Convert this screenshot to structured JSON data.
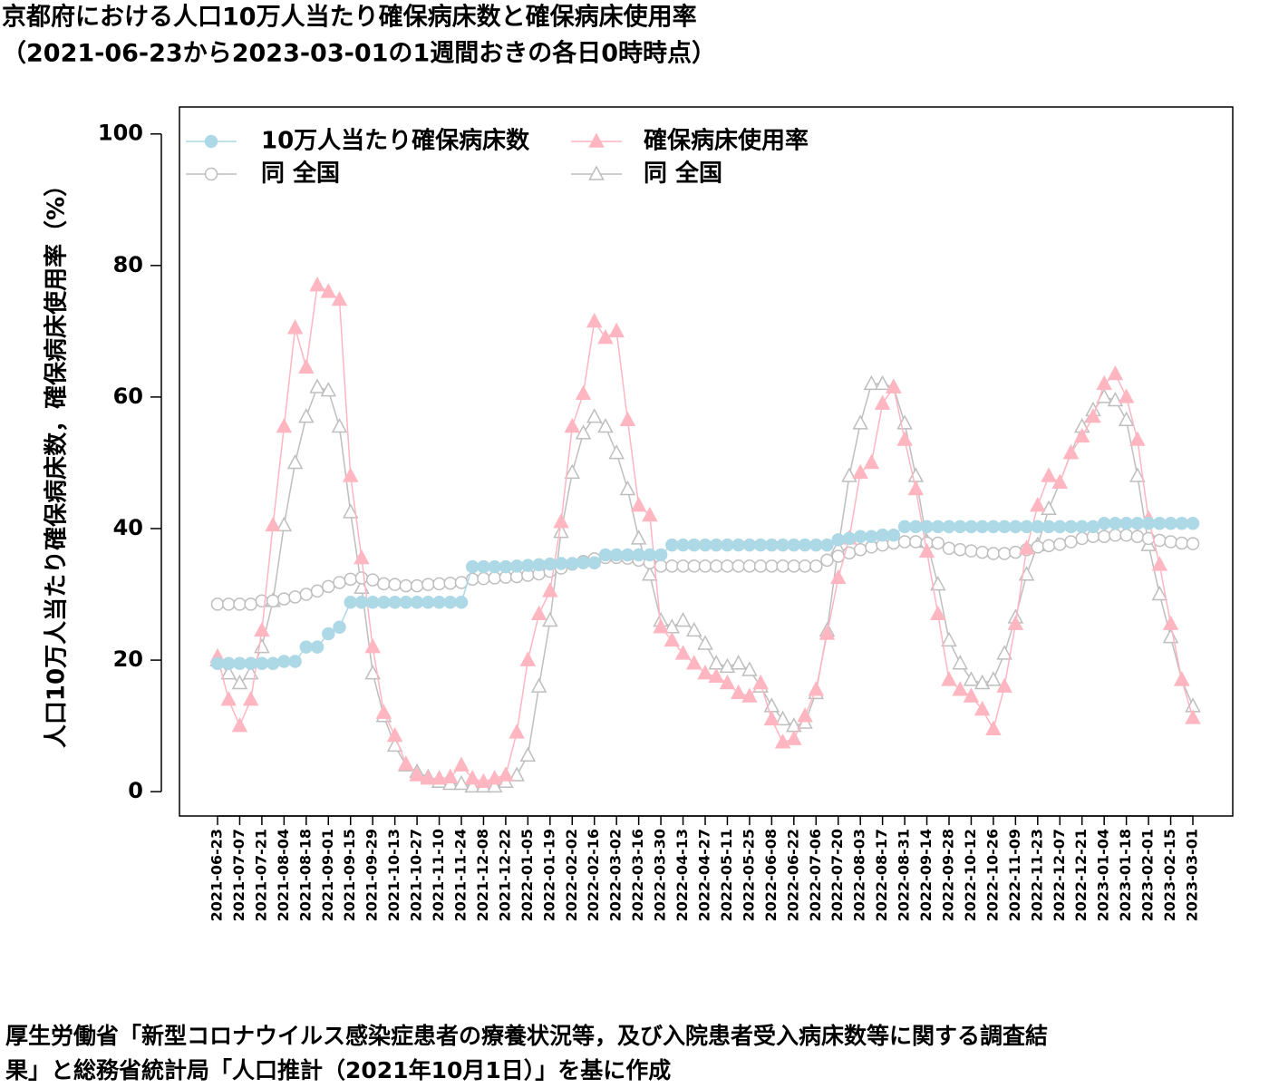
{
  "chart_data": {
    "type": "line",
    "title": "京都府における人口10万人当たり確保病床数と確保病床使用率",
    "subtitle": "（2021-06-23から2023-03-01の1週間おきの各日0時時点）",
    "y_label": "人口10万人当たり確保病床数，確保病床使用率（%）",
    "source": [
      "厚生労働省「新型コロナウイルス感染症患者の療養状況等，及び入院患者受入病床数等に関する調査結",
      "果」と総務省統計局「人口推計（2021年10月1日）」を基に作成"
    ],
    "categories": [
      "2021-06-23",
      null,
      "2021-07-07",
      null,
      "2021-07-21",
      null,
      "2021-08-04",
      null,
      "2021-08-18",
      null,
      "2021-09-01",
      null,
      "2021-09-15",
      null,
      "2021-09-29",
      null,
      "2021-10-13",
      null,
      "2021-10-27",
      null,
      "2021-11-10",
      null,
      "2021-11-24",
      null,
      "2021-12-08",
      null,
      "2021-12-22",
      null,
      "2022-01-05",
      null,
      "2022-01-19",
      null,
      "2022-02-02",
      null,
      "2022-02-16",
      null,
      "2022-03-02",
      null,
      "2022-03-16",
      null,
      "2022-03-30",
      null,
      "2022-04-13",
      null,
      "2022-04-27",
      null,
      "2022-05-11",
      null,
      "2022-05-25",
      null,
      "2022-06-08",
      null,
      "2022-06-22",
      null,
      "2022-07-06",
      null,
      "2022-07-20",
      null,
      "2022-08-03",
      null,
      "2022-08-17",
      null,
      "2022-08-31",
      null,
      "2022-09-14",
      null,
      "2022-09-28",
      null,
      "2022-10-12",
      null,
      "2022-10-26",
      null,
      "2022-11-09",
      null,
      "2022-11-23",
      null,
      "2022-12-07",
      null,
      "2022-12-21",
      null,
      "2023-01-04",
      null,
      "2023-01-18",
      null,
      "2023-02-01",
      null,
      "2023-02-15",
      null,
      "2023-03-01"
    ],
    "series": [
      {
        "name": "10万人当たり確保病床数",
        "color": "#add8e6",
        "marker": "circle",
        "filled": true,
        "values": [
          19.5,
          19.5,
          19.5,
          19.5,
          19.5,
          19.5,
          19.8,
          19.8,
          22,
          22,
          24,
          25,
          28.8,
          28.8,
          28.8,
          28.8,
          28.8,
          28.8,
          28.8,
          28.8,
          28.8,
          28.8,
          28.8,
          34.2,
          34.2,
          34.2,
          34.2,
          34.3,
          34.4,
          34.5,
          34.6,
          34.7,
          34.7,
          34.8,
          34.8,
          36,
          36,
          36,
          36,
          36,
          36,
          37.5,
          37.5,
          37.5,
          37.5,
          37.5,
          37.5,
          37.5,
          37.5,
          37.5,
          37.5,
          37.5,
          37.5,
          37.5,
          37.5,
          37.5,
          38.3,
          38.5,
          38.8,
          38.8,
          39,
          39,
          40.3,
          40.3,
          40.3,
          40.3,
          40.3,
          40.3,
          40.3,
          40.3,
          40.3,
          40.3,
          40.3,
          40.3,
          40.3,
          40.3,
          40.3,
          40.3,
          40.3,
          40.3,
          40.8,
          40.8,
          40.8,
          40.8,
          40.8,
          40.8,
          40.8,
          40.8,
          40.8
        ]
      },
      {
        "name": "確保病床使用率",
        "color": "#ffb6c1",
        "marker": "triangle",
        "filled": true,
        "values": [
          20.5,
          14,
          10,
          14,
          24.5,
          40.5,
          55.5,
          70.5,
          64.5,
          77,
          76,
          74.8,
          48,
          35.5,
          22,
          12,
          8.5,
          4.2,
          2.5,
          2,
          2,
          2.2,
          4,
          2,
          1.5,
          2,
          2.5,
          9,
          20,
          27,
          30.5,
          41,
          55.5,
          60.5,
          71.5,
          69,
          70,
          56.5,
          43.5,
          42,
          25,
          23,
          21,
          19.5,
          18,
          17.5,
          16.5,
          15,
          14.5,
          16.5,
          11,
          7.5,
          8,
          11.5,
          15.5,
          24,
          32.5,
          38.5,
          48.5,
          50,
          59,
          61.5,
          53.5,
          46,
          36.5,
          27,
          17,
          15.5,
          14.5,
          12.5,
          9.5,
          16,
          25.5,
          37,
          43.5,
          48,
          47,
          51.5,
          54,
          57,
          62,
          63.5,
          60,
          53.5,
          41.5,
          34.5,
          25.5,
          17,
          11.2
        ]
      },
      {
        "name": "同 全国",
        "color": "#bebebe",
        "marker": "circle",
        "filled": false,
        "values": [
          28.5,
          28.5,
          28.5,
          28.5,
          29,
          29,
          29.3,
          29.6,
          30,
          30.5,
          31.2,
          31.8,
          32.3,
          32.5,
          32.2,
          31.6,
          31.5,
          31.3,
          31.3,
          31.5,
          31.6,
          31.7,
          31.8,
          32.3,
          32.4,
          32.5,
          32.6,
          32.7,
          32.9,
          33.1,
          33.5,
          34,
          34.6,
          35,
          35.4,
          35.6,
          35.6,
          35.5,
          35.2,
          34.8,
          34.3,
          34.3,
          34.3,
          34.3,
          34.3,
          34.3,
          34.3,
          34.3,
          34.3,
          34.3,
          34.3,
          34.3,
          34.3,
          34.3,
          34.3,
          35.2,
          35.8,
          36.3,
          36.8,
          37.2,
          37.5,
          37.8,
          38,
          38,
          37.8,
          37.8,
          37,
          36.8,
          36.6,
          36.4,
          36.2,
          36.2,
          36.4,
          36.8,
          37.2,
          37.4,
          37.6,
          38,
          38.5,
          38.8,
          38.8,
          39,
          39,
          38.8,
          38.5,
          38.2,
          38,
          37.8,
          37.7
        ]
      },
      {
        "name": "同 全国",
        "color": "#bebebe",
        "marker": "triangle",
        "filled": false,
        "values": [
          20,
          18,
          16.5,
          18,
          22,
          29,
          40.5,
          50,
          57,
          61.5,
          61,
          55.5,
          42.5,
          31,
          18,
          11.5,
          7,
          4,
          3,
          2.2,
          1.5,
          1.2,
          1.2,
          0.8,
          0.8,
          0.8,
          1.5,
          2.5,
          5.5,
          16,
          26,
          39.5,
          48.5,
          54.5,
          57,
          55.5,
          51.5,
          46,
          38.5,
          33,
          26,
          25,
          26,
          24.5,
          22.5,
          19.5,
          19,
          19.5,
          18.5,
          16,
          13,
          11,
          10,
          10.5,
          15,
          24.5,
          37,
          48,
          56,
          62,
          62,
          61.5,
          56,
          48,
          38,
          31.5,
          23,
          19.5,
          17,
          16.5,
          17,
          21,
          26.5,
          33,
          37.5,
          43,
          47,
          51.5,
          55.5,
          58,
          60,
          59.5,
          56.5,
          48,
          37.5,
          30,
          23.5,
          17,
          13
        ]
      }
    ],
    "ylim": [
      -3.7,
      104.1
    ],
    "yticks": [
      0,
      20,
      40,
      60,
      80,
      100
    ]
  }
}
